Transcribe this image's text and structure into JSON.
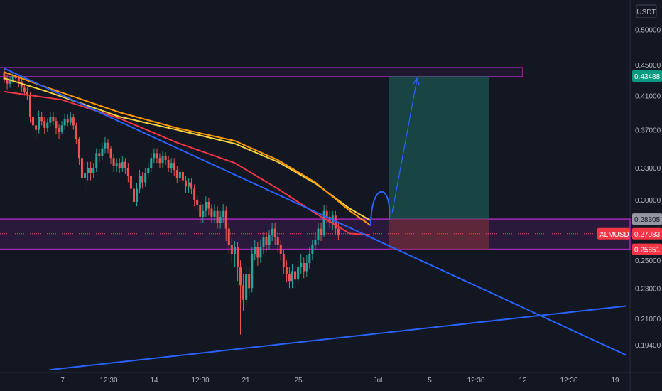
{
  "currency_label": "USDT",
  "colors": {
    "background": "#131722",
    "up": "#26a69a",
    "down": "#ef5350",
    "zone": "#9c27b0",
    "trendline": "#2962ff",
    "ma_yellow": "#f5d142",
    "ma_orange": "#ff9800",
    "ma_red": "#f23645",
    "target_fill": "#1e6b5f",
    "stop_fill": "#7a2f3a"
  },
  "chart_data": {
    "type": "candlestick",
    "symbol_label": "XLMUSDT",
    "y_ticks": [
      "0.50000",
      "0.45000",
      "0.41000",
      "0.37000",
      "0.33000",
      "0.30000",
      "0.25000",
      "0.23000",
      "0.21000",
      "0.19400"
    ],
    "x_ticks": [
      "7",
      "12:30",
      "14",
      "12:30",
      "21",
      "25",
      "Jul",
      "5",
      "12:30",
      "12",
      "12:30",
      "19"
    ],
    "ylim": [
      0.18,
      0.53
    ],
    "log_scale": true,
    "price_labels": [
      {
        "label": "0.43488",
        "value": 0.43488,
        "color": "#089981",
        "text_color": "#ffffff"
      },
      {
        "label": "0.28305",
        "value": 0.28305,
        "color": "#9598a1",
        "text_color": "#131722"
      },
      {
        "label": "0.27083",
        "value": 0.27083,
        "color": "#f23645",
        "text_color": "#ffffff"
      },
      {
        "label": "0.25851",
        "value": 0.25851,
        "color": "#f23645",
        "text_color": "#ffffff"
      }
    ],
    "zones": [
      {
        "name": "resistance",
        "top": 0.446,
        "bottom": 0.434
      },
      {
        "name": "support",
        "top": 0.28305,
        "bottom": 0.25851
      }
    ],
    "position": {
      "entry": 0.28305,
      "target": 0.43488,
      "stop": 0.25851
    },
    "current_price": 0.27083,
    "candles": [
      [
        0.44,
        0.43,
        0.446,
        0.426
      ],
      [
        0.43,
        0.425,
        0.436,
        0.418
      ],
      [
        0.425,
        0.43,
        0.434,
        0.42
      ],
      [
        0.43,
        0.435,
        0.44,
        0.425
      ],
      [
        0.435,
        0.432,
        0.44,
        0.426
      ],
      [
        0.432,
        0.428,
        0.436,
        0.42
      ],
      [
        0.428,
        0.42,
        0.432,
        0.414
      ],
      [
        0.42,
        0.415,
        0.425,
        0.41
      ],
      [
        0.415,
        0.41,
        0.42,
        0.405
      ],
      [
        0.41,
        0.385,
        0.414,
        0.378
      ],
      [
        0.385,
        0.375,
        0.39,
        0.368
      ],
      [
        0.375,
        0.37,
        0.38,
        0.36
      ],
      [
        0.37,
        0.385,
        0.392,
        0.366
      ],
      [
        0.385,
        0.38,
        0.39,
        0.375
      ],
      [
        0.38,
        0.372,
        0.385,
        0.365
      ],
      [
        0.372,
        0.378,
        0.383,
        0.368
      ],
      [
        0.378,
        0.385,
        0.39,
        0.374
      ],
      [
        0.385,
        0.38,
        0.39,
        0.375
      ],
      [
        0.38,
        0.372,
        0.384,
        0.365
      ],
      [
        0.372,
        0.368,
        0.376,
        0.36
      ],
      [
        0.368,
        0.375,
        0.38,
        0.365
      ],
      [
        0.375,
        0.382,
        0.388,
        0.37
      ],
      [
        0.382,
        0.378,
        0.388,
        0.374
      ],
      [
        0.378,
        0.384,
        0.39,
        0.375
      ],
      [
        0.384,
        0.375,
        0.388,
        0.37
      ],
      [
        0.375,
        0.36,
        0.378,
        0.355
      ],
      [
        0.36,
        0.34,
        0.362,
        0.333
      ],
      [
        0.34,
        0.32,
        0.345,
        0.315
      ],
      [
        0.32,
        0.325,
        0.33,
        0.305
      ],
      [
        0.325,
        0.33,
        0.336,
        0.318
      ],
      [
        0.33,
        0.325,
        0.336,
        0.318
      ],
      [
        0.325,
        0.33,
        0.335,
        0.32
      ],
      [
        0.33,
        0.345,
        0.35,
        0.326
      ],
      [
        0.345,
        0.342,
        0.35,
        0.336
      ],
      [
        0.342,
        0.35,
        0.356,
        0.338
      ],
      [
        0.35,
        0.356,
        0.362,
        0.345
      ],
      [
        0.356,
        0.35,
        0.36,
        0.345
      ],
      [
        0.35,
        0.34,
        0.352,
        0.334
      ],
      [
        0.34,
        0.332,
        0.344,
        0.326
      ],
      [
        0.332,
        0.335,
        0.34,
        0.326
      ],
      [
        0.335,
        0.33,
        0.34,
        0.325
      ],
      [
        0.33,
        0.336,
        0.342,
        0.326
      ],
      [
        0.336,
        0.33,
        0.34,
        0.324
      ],
      [
        0.33,
        0.322,
        0.335,
        0.316
      ],
      [
        0.322,
        0.31,
        0.326,
        0.303
      ],
      [
        0.31,
        0.298,
        0.315,
        0.292
      ],
      [
        0.298,
        0.31,
        0.315,
        0.294
      ],
      [
        0.31,
        0.322,
        0.328,
        0.306
      ],
      [
        0.322,
        0.316,
        0.326,
        0.31
      ],
      [
        0.316,
        0.325,
        0.33,
        0.312
      ],
      [
        0.325,
        0.33,
        0.335,
        0.32
      ],
      [
        0.33,
        0.34,
        0.345,
        0.326
      ],
      [
        0.34,
        0.345,
        0.35,
        0.335
      ],
      [
        0.345,
        0.34,
        0.35,
        0.335
      ],
      [
        0.34,
        0.335,
        0.345,
        0.33
      ],
      [
        0.335,
        0.342,
        0.347,
        0.33
      ],
      [
        0.342,
        0.338,
        0.346,
        0.333
      ],
      [
        0.338,
        0.33,
        0.342,
        0.326
      ],
      [
        0.33,
        0.335,
        0.34,
        0.325
      ],
      [
        0.335,
        0.328,
        0.34,
        0.322
      ],
      [
        0.328,
        0.32,
        0.332,
        0.315
      ],
      [
        0.32,
        0.326,
        0.33,
        0.315
      ],
      [
        0.326,
        0.318,
        0.33,
        0.313
      ],
      [
        0.318,
        0.312,
        0.322,
        0.306
      ],
      [
        0.312,
        0.316,
        0.32,
        0.306
      ],
      [
        0.316,
        0.31,
        0.32,
        0.305
      ],
      [
        0.31,
        0.3,
        0.314,
        0.294
      ],
      [
        0.3,
        0.295,
        0.304,
        0.29
      ],
      [
        0.295,
        0.285,
        0.298,
        0.28
      ],
      [
        0.285,
        0.29,
        0.296,
        0.28
      ],
      [
        0.29,
        0.298,
        0.303,
        0.285
      ],
      [
        0.298,
        0.292,
        0.302,
        0.286
      ],
      [
        0.292,
        0.285,
        0.296,
        0.28
      ],
      [
        0.285,
        0.29,
        0.296,
        0.28
      ],
      [
        0.29,
        0.28,
        0.294,
        0.275
      ],
      [
        0.28,
        0.285,
        0.29,
        0.275
      ],
      [
        0.285,
        0.29,
        0.296,
        0.28
      ],
      [
        0.29,
        0.275,
        0.294,
        0.265
      ],
      [
        0.275,
        0.262,
        0.28,
        0.255
      ],
      [
        0.262,
        0.255,
        0.268,
        0.248
      ],
      [
        0.255,
        0.26,
        0.265,
        0.245
      ],
      [
        0.26,
        0.245,
        0.264,
        0.235
      ],
      [
        0.245,
        0.232,
        0.25,
        0.2
      ],
      [
        0.232,
        0.222,
        0.24,
        0.215
      ],
      [
        0.222,
        0.24,
        0.246,
        0.218
      ],
      [
        0.24,
        0.23,
        0.245,
        0.225
      ],
      [
        0.23,
        0.255,
        0.26,
        0.227
      ],
      [
        0.255,
        0.26,
        0.266,
        0.25
      ],
      [
        0.26,
        0.252,
        0.264,
        0.246
      ],
      [
        0.252,
        0.26,
        0.266,
        0.248
      ],
      [
        0.26,
        0.268,
        0.272,
        0.255
      ],
      [
        0.268,
        0.262,
        0.272,
        0.257
      ],
      [
        0.262,
        0.27,
        0.274,
        0.258
      ],
      [
        0.27,
        0.275,
        0.28,
        0.265
      ],
      [
        0.275,
        0.268,
        0.28,
        0.262
      ],
      [
        0.268,
        0.262,
        0.272,
        0.256
      ],
      [
        0.262,
        0.255,
        0.266,
        0.25
      ],
      [
        0.255,
        0.245,
        0.258,
        0.24
      ],
      [
        0.245,
        0.24,
        0.25,
        0.234
      ],
      [
        0.24,
        0.235,
        0.245,
        0.23
      ],
      [
        0.235,
        0.242,
        0.247,
        0.23
      ],
      [
        0.242,
        0.236,
        0.246,
        0.23
      ],
      [
        0.236,
        0.245,
        0.25,
        0.232
      ],
      [
        0.245,
        0.248,
        0.255,
        0.24
      ],
      [
        0.248,
        0.242,
        0.252,
        0.237
      ],
      [
        0.242,
        0.248,
        0.254,
        0.238
      ],
      [
        0.248,
        0.255,
        0.26,
        0.244
      ],
      [
        0.255,
        0.262,
        0.266,
        0.25
      ],
      [
        0.262,
        0.266,
        0.272,
        0.258
      ],
      [
        0.266,
        0.275,
        0.28,
        0.262
      ],
      [
        0.275,
        0.27,
        0.28,
        0.265
      ],
      [
        0.27,
        0.29,
        0.295,
        0.268
      ],
      [
        0.29,
        0.285,
        0.295,
        0.28
      ],
      [
        0.285,
        0.28,
        0.29,
        0.275
      ],
      [
        0.28,
        0.286,
        0.29,
        0.274
      ],
      [
        0.286,
        0.275,
        0.29,
        0.27
      ],
      [
        0.275,
        0.27,
        0.28,
        0.266
      ]
    ],
    "moving_averages": [
      {
        "color": "#f5d142",
        "values": [
          [
            0,
            0.432
          ],
          [
            15,
            0.415
          ],
          [
            40,
            0.385
          ],
          [
            60,
            0.37
          ],
          [
            80,
            0.355
          ],
          [
            95,
            0.336
          ],
          [
            108,
            0.315
          ],
          [
            120,
            0.292
          ],
          [
            127,
            0.282
          ]
        ]
      },
      {
        "color": "#ff9800",
        "values": [
          [
            0,
            0.44
          ],
          [
            15,
            0.42
          ],
          [
            40,
            0.39
          ],
          [
            60,
            0.372
          ],
          [
            80,
            0.358
          ],
          [
            95,
            0.338
          ],
          [
            108,
            0.316
          ],
          [
            120,
            0.29
          ],
          [
            127,
            0.278
          ]
        ]
      },
      {
        "color": "#f23645",
        "values": [
          [
            0,
            0.415
          ],
          [
            20,
            0.405
          ],
          [
            40,
            0.383
          ],
          [
            60,
            0.356
          ],
          [
            80,
            0.335
          ],
          [
            95,
            0.31
          ],
          [
            108,
            0.288
          ],
          [
            120,
            0.271
          ],
          [
            127,
            0.27
          ]
        ]
      }
    ],
    "trendlines": [
      {
        "from": [
          0,
          0.445
        ],
        "to": [
          216,
          0.188
        ]
      },
      {
        "from": [
          16,
          0.18
        ],
        "to": [
          216,
          0.218
        ]
      }
    ]
  }
}
